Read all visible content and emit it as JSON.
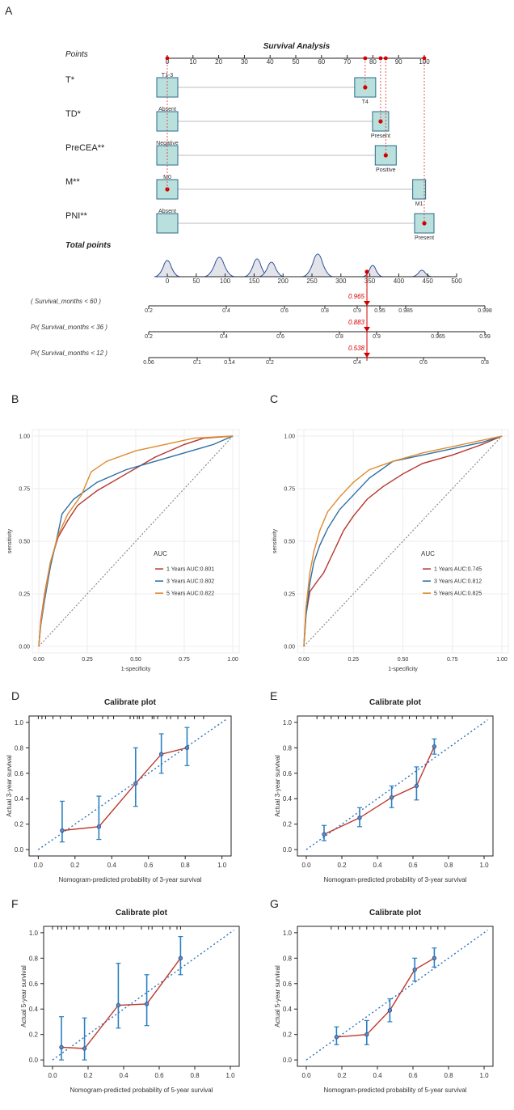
{
  "panels": {
    "A": "A",
    "B": "B",
    "C": "C",
    "D": "D",
    "E": "E",
    "F": "F",
    "G": "G"
  },
  "nomogram": {
    "title": "Survival Analysis",
    "points_label": "Points",
    "points_ticks": [
      0,
      10,
      20,
      30,
      40,
      50,
      60,
      70,
      80,
      90,
      100
    ],
    "variables": [
      {
        "label": "T*",
        "low": "T1-3",
        "high": "T4",
        "high_points": 77,
        "selected": "high"
      },
      {
        "label": "TD*",
        "low": "Absent",
        "high": "Present",
        "high_points": 83,
        "selected": "high"
      },
      {
        "label": "PreCEA**",
        "low": "Negative",
        "high": "Positive",
        "high_points": 85,
        "selected": "high"
      },
      {
        "label": "M**",
        "low": "M0",
        "high": "M1",
        "high_points": 98,
        "selected": "low"
      },
      {
        "label": "PNI**",
        "low": "Absent",
        "high": "Present",
        "high_points": 100,
        "selected": "high"
      }
    ],
    "selected_points": [
      77,
      83,
      85,
      0,
      100
    ],
    "total_label": "Total points",
    "total_ticks": [
      0,
      50,
      100,
      150,
      200,
      250,
      300,
      350,
      400,
      450,
      500
    ],
    "total_value": 345,
    "prob_rows": [
      {
        "label": "( Survival_months < 60 )",
        "value_label": "0.965",
        "ticks": [
          {
            "v": "0.2",
            "t": 0
          },
          {
            "v": "0.4",
            "t": 96
          },
          {
            "v": "0.6",
            "t": 168
          },
          {
            "v": "0.8",
            "t": 218
          },
          {
            "v": "0.9",
            "t": 258
          },
          {
            "v": "0.95",
            "t": 286
          },
          {
            "v": "0.985",
            "t": 318
          },
          {
            "v": "0.998",
            "t": 416
          }
        ]
      },
      {
        "label": "Pr( Survival_months < 36 )",
        "value_label": "0.883",
        "ticks": [
          {
            "v": "0.2",
            "t": 0
          },
          {
            "v": "0.4",
            "t": 93
          },
          {
            "v": "0.6",
            "t": 163
          },
          {
            "v": "0.8",
            "t": 236
          },
          {
            "v": "0.9",
            "t": 282
          },
          {
            "v": "0.965",
            "t": 358
          },
          {
            "v": "0.99",
            "t": 416
          }
        ]
      },
      {
        "label": "Pr( Survival_months < 12 )",
        "value_label": "0.538",
        "ticks": [
          {
            "v": "0.06",
            "t": 0
          },
          {
            "v": "0.1",
            "t": 60
          },
          {
            "v": "0.14",
            "t": 100
          },
          {
            "v": "0.2",
            "t": 150
          },
          {
            "v": "0.4",
            "t": 258
          },
          {
            "v": "0.6",
            "t": 340
          },
          {
            "v": "0.8",
            "t": 416
          }
        ]
      }
    ]
  },
  "chart_data": [
    {
      "type": "line",
      "id": "B",
      "title": "",
      "xlabel": "1-specificity",
      "ylabel": "sensitivity",
      "xlim": [
        0,
        1
      ],
      "ylim": [
        0,
        1
      ],
      "xticks": [
        "0.00",
        "0.25",
        "0.50",
        "0.75",
        "1.00"
      ],
      "yticks": [
        "0.00",
        "0.25",
        "0.50",
        "0.75",
        "1.00"
      ],
      "legend_title": "AUC",
      "series": [
        {
          "name": "1 Years AUC:0.801",
          "color": "#b5352b",
          "x": [
            0,
            0.01,
            0.03,
            0.06,
            0.1,
            0.15,
            0.2,
            0.3,
            0.45,
            0.6,
            0.75,
            0.85,
            1
          ],
          "y": [
            0,
            0.12,
            0.25,
            0.4,
            0.52,
            0.6,
            0.67,
            0.74,
            0.82,
            0.9,
            0.96,
            0.99,
            1
          ]
        },
        {
          "name": "3 Years AUC:0.802",
          "color": "#2e6fa3",
          "x": [
            0,
            0.01,
            0.03,
            0.06,
            0.09,
            0.12,
            0.18,
            0.3,
            0.45,
            0.6,
            0.75,
            0.9,
            1
          ],
          "y": [
            0,
            0.1,
            0.22,
            0.38,
            0.5,
            0.63,
            0.7,
            0.78,
            0.84,
            0.88,
            0.92,
            0.96,
            1
          ]
        },
        {
          "name": "5 Years AUC:0.822",
          "color": "#e08a2c",
          "x": [
            0,
            0.01,
            0.03,
            0.06,
            0.1,
            0.15,
            0.22,
            0.27,
            0.35,
            0.5,
            0.65,
            0.8,
            1
          ],
          "y": [
            0,
            0.11,
            0.24,
            0.4,
            0.53,
            0.63,
            0.72,
            0.83,
            0.88,
            0.93,
            0.96,
            0.99,
            1
          ]
        }
      ]
    },
    {
      "type": "line",
      "id": "C",
      "title": "",
      "xlabel": "1-specificity",
      "ylabel": "sensitivity",
      "xlim": [
        0,
        1
      ],
      "ylim": [
        0,
        1
      ],
      "xticks": [
        "0.00",
        "0.25",
        "0.50",
        "0.75",
        "1.00"
      ],
      "yticks": [
        "0.00",
        "0.25",
        "0.50",
        "0.75",
        "1.00"
      ],
      "legend_title": "AUC",
      "series": [
        {
          "name": "1 Years AUC:0.745",
          "color": "#b5352b",
          "x": [
            0,
            0.01,
            0.03,
            0.06,
            0.1,
            0.15,
            0.2,
            0.25,
            0.32,
            0.4,
            0.5,
            0.6,
            0.75,
            0.9,
            1
          ],
          "y": [
            0,
            0.15,
            0.26,
            0.3,
            0.35,
            0.45,
            0.55,
            0.62,
            0.7,
            0.76,
            0.82,
            0.87,
            0.91,
            0.96,
            1
          ]
        },
        {
          "name": "3 Years AUC:0.812",
          "color": "#2e6fa3",
          "x": [
            0,
            0.01,
            0.03,
            0.05,
            0.08,
            0.12,
            0.18,
            0.25,
            0.33,
            0.45,
            0.6,
            0.75,
            0.9,
            1
          ],
          "y": [
            0,
            0.14,
            0.3,
            0.4,
            0.48,
            0.56,
            0.65,
            0.72,
            0.8,
            0.88,
            0.91,
            0.94,
            0.97,
            1
          ]
        },
        {
          "name": "5 Years AUC:0.825",
          "color": "#e08a2c",
          "x": [
            0,
            0.01,
            0.03,
            0.05,
            0.08,
            0.12,
            0.18,
            0.25,
            0.33,
            0.45,
            0.6,
            0.75,
            0.9,
            1
          ],
          "y": [
            0,
            0.18,
            0.35,
            0.45,
            0.55,
            0.64,
            0.71,
            0.78,
            0.84,
            0.88,
            0.92,
            0.95,
            0.98,
            1
          ]
        }
      ]
    },
    {
      "type": "line",
      "id": "D",
      "title": "Calibrate plot",
      "xlabel": "Nomogram-predicted probability of 3-year survival",
      "ylabel": "Actual 3-year survival",
      "xlim": [
        -0.05,
        1.05
      ],
      "ylim": [
        -0.05,
        1.05
      ],
      "xticks": [
        "0.0",
        "0.2",
        "0.4",
        "0.6",
        "0.8",
        "1.0"
      ],
      "yticks": [
        "0.0",
        "0.2",
        "0.4",
        "0.6",
        "0.8",
        "1.0"
      ],
      "x": [
        0.13,
        0.33,
        0.53,
        0.67,
        0.81
      ],
      "y": [
        0.15,
        0.18,
        0.52,
        0.75,
        0.8
      ],
      "err_low": [
        0.06,
        0.08,
        0.34,
        0.6,
        0.66
      ],
      "err_high": [
        0.38,
        0.42,
        0.8,
        0.91,
        0.96
      ],
      "rug": [
        0.0,
        0.02,
        0.04,
        0.08,
        0.12,
        0.18,
        0.27,
        0.3,
        0.35,
        0.38,
        0.41,
        0.5,
        0.52,
        0.54,
        0.55,
        0.57,
        0.62,
        0.63,
        0.65,
        0.7,
        0.72,
        0.76,
        0.8,
        0.85,
        0.9
      ]
    },
    {
      "type": "line",
      "id": "E",
      "title": "Calibrate plot",
      "xlabel": "Nomogram-predicted probability of 3-year survival",
      "ylabel": "Actual 3-year survival",
      "xlim": [
        -0.05,
        1.05
      ],
      "ylim": [
        -0.05,
        1.05
      ],
      "xticks": [
        "0.0",
        "0.2",
        "0.4",
        "0.6",
        "0.8",
        "1.0"
      ],
      "yticks": [
        "0.0",
        "0.2",
        "0.4",
        "0.6",
        "0.8",
        "1.0"
      ],
      "x": [
        0.1,
        0.3,
        0.48,
        0.62,
        0.72
      ],
      "y": [
        0.12,
        0.25,
        0.41,
        0.5,
        0.81
      ],
      "err_low": [
        0.07,
        0.18,
        0.33,
        0.39,
        0.75
      ],
      "err_high": [
        0.19,
        0.33,
        0.5,
        0.65,
        0.87
      ],
      "rug": [
        0.06,
        0.1,
        0.14,
        0.18,
        0.22,
        0.26,
        0.3,
        0.34,
        0.38,
        0.42,
        0.46,
        0.5,
        0.54,
        0.58,
        0.62,
        0.66,
        0.7,
        0.74,
        0.78,
        0.82
      ]
    },
    {
      "type": "line",
      "id": "F",
      "title": "Calibrate plot",
      "xlabel": "Nomogram-predicted probability of 5-year survival",
      "ylabel": "Actual 5-year survival",
      "xlim": [
        -0.05,
        1.05
      ],
      "ylim": [
        -0.05,
        1.05
      ],
      "xticks": [
        "0.0",
        "0.2",
        "0.4",
        "0.6",
        "0.8",
        "1.0"
      ],
      "yticks": [
        "0.0",
        "0.2",
        "0.4",
        "0.6",
        "0.8",
        "1.0"
      ],
      "x": [
        0.05,
        0.18,
        0.37,
        0.53,
        0.72
      ],
      "y": [
        0.1,
        0.09,
        0.43,
        0.44,
        0.8
      ],
      "err_low": [
        0.0,
        0.0,
        0.25,
        0.27,
        0.67
      ],
      "err_high": [
        0.34,
        0.33,
        0.76,
        0.67,
        0.97
      ],
      "rug": [
        0.0,
        0.03,
        0.05,
        0.08,
        0.12,
        0.15,
        0.2,
        0.26,
        0.3,
        0.32,
        0.36,
        0.4,
        0.5,
        0.54,
        0.56,
        0.62,
        0.66,
        0.7,
        0.72
      ]
    },
    {
      "type": "line",
      "id": "G",
      "title": "Calibrate plot",
      "xlabel": "Nomogram-predicted probability of 5-year survival",
      "ylabel": "Actual 5-year survival",
      "xlim": [
        -0.05,
        1.05
      ],
      "ylim": [
        -0.05,
        1.05
      ],
      "xticks": [
        "0.0",
        "0.2",
        "0.4",
        "0.6",
        "0.8",
        "1.0"
      ],
      "yticks": [
        "0.0",
        "0.2",
        "0.4",
        "0.6",
        "0.8",
        "1.0"
      ],
      "x": [
        0.17,
        0.34,
        0.47,
        0.61,
        0.72
      ],
      "y": [
        0.18,
        0.2,
        0.39,
        0.71,
        0.8
      ],
      "err_low": [
        0.12,
        0.12,
        0.3,
        0.62,
        0.73
      ],
      "err_high": [
        0.26,
        0.31,
        0.48,
        0.8,
        0.88
      ],
      "rug": [
        0.14,
        0.18,
        0.22,
        0.26,
        0.3,
        0.34,
        0.38,
        0.42,
        0.46,
        0.5,
        0.54,
        0.58,
        0.62,
        0.66,
        0.7,
        0.74,
        0.78
      ]
    }
  ]
}
